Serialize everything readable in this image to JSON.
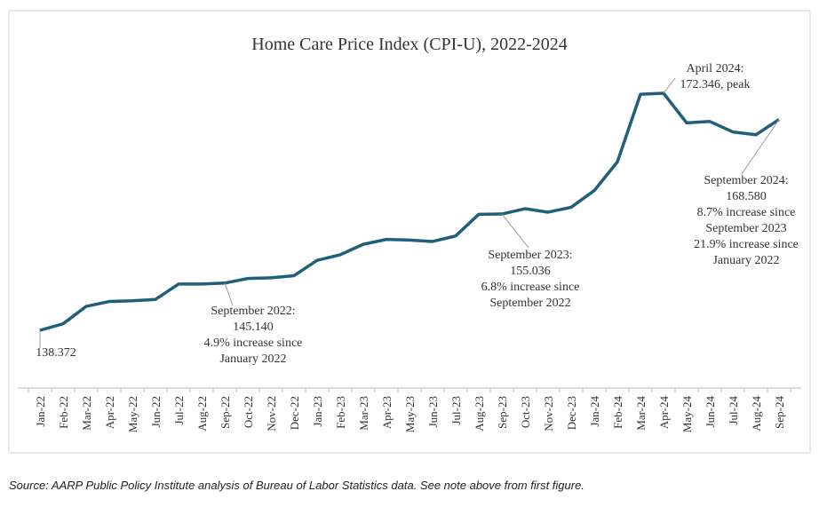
{
  "chart_data": {
    "type": "line",
    "title": "Home Care Price Index (CPI-U), 2022-2024",
    "categories": [
      "Jan-22",
      "Feb-22",
      "Mar-22",
      "Apr-22",
      "May-22",
      "Jun-22",
      "Jul-22",
      "Aug-22",
      "Sep-22",
      "Oct-22",
      "Nov-22",
      "Dec-22",
      "Jan-23",
      "Feb-23",
      "Mar-23",
      "Apr-23",
      "May-23",
      "Jun-23",
      "Jul-23",
      "Aug-23",
      "Sep-23",
      "Oct-23",
      "Nov-23",
      "Dec-23",
      "Jan-24",
      "Feb-24",
      "Mar-24",
      "Apr-24",
      "May-24",
      "Jun-24",
      "Jul-24",
      "Aug-24",
      "Sep-24"
    ],
    "series": [
      {
        "name": "Home Care CPI-U",
        "color": "#1f5f7a",
        "values": [
          138.372,
          139.3,
          141.8,
          142.5,
          142.6,
          142.8,
          145.0,
          145.0,
          145.14,
          145.8,
          145.9,
          146.2,
          148.4,
          149.2,
          150.7,
          151.4,
          151.3,
          151.1,
          151.9,
          155.0,
          155.036,
          155.8,
          155.3,
          156.0,
          158.4,
          162.5,
          172.2,
          172.346,
          168.1,
          168.3,
          166.8,
          166.4,
          168.58
        ]
      }
    ],
    "annotations": [
      [
        "138.372"
      ],
      [
        "September 2022:",
        "145.140",
        "4.9% increase since",
        "January 2022"
      ],
      [
        "September 2023:",
        "155.036",
        "6.8% increase since",
        "September 2022"
      ],
      [
        "April 2024:",
        "172.346, peak"
      ],
      [
        "September 2024:",
        "168.580",
        "8.7% increase since",
        "September 2023",
        "21.9% increase since",
        "January 2022"
      ]
    ],
    "source": "Source: AARP Public Policy Institute analysis of Bureau of Labor Statistics data. See note above from first figure."
  }
}
